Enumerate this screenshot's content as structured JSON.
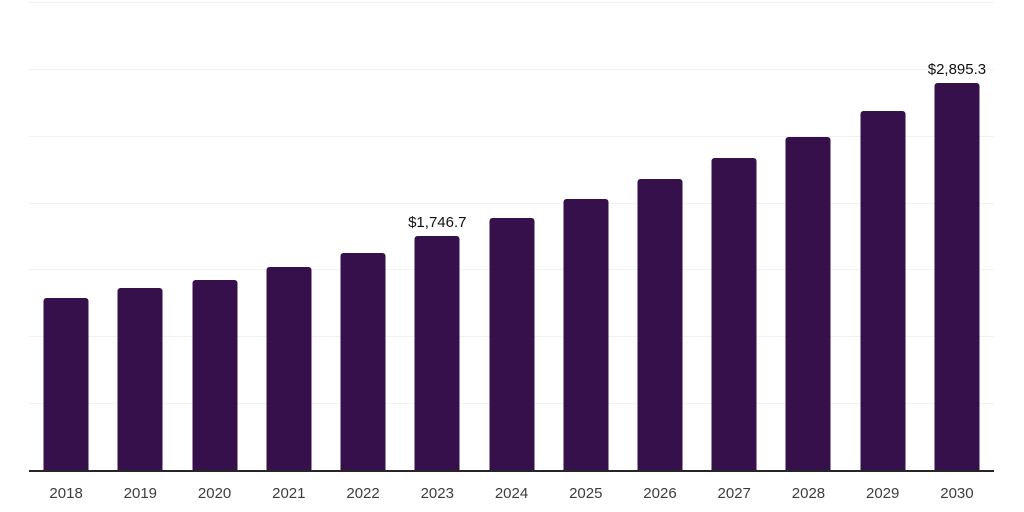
{
  "chart_data": {
    "type": "bar",
    "title": "",
    "xlabel": "",
    "ylabel": "",
    "categories": [
      "2018",
      "2019",
      "2020",
      "2021",
      "2022",
      "2023",
      "2024",
      "2025",
      "2026",
      "2027",
      "2028",
      "2029",
      "2030"
    ],
    "values": [
      1288,
      1362,
      1422,
      1519,
      1623,
      1746.7,
      1884,
      2025,
      2174,
      2330,
      2494,
      2688,
      2895.3
    ],
    "data_labels": {
      "2023": "$1,746.7",
      "2030": "$2,895.3"
    },
    "ylim": [
      0,
      3500
    ],
    "gridline_step": 500,
    "grid": "horizontal-only",
    "legend": "none",
    "y_axis_labels_visible": false
  },
  "colors": {
    "bar": "#36104B",
    "grid": "#f2f2f2",
    "axis": "#262626",
    "tick_label": "#3d3d3d",
    "data_label": "#111111",
    "background": "#ffffff"
  }
}
